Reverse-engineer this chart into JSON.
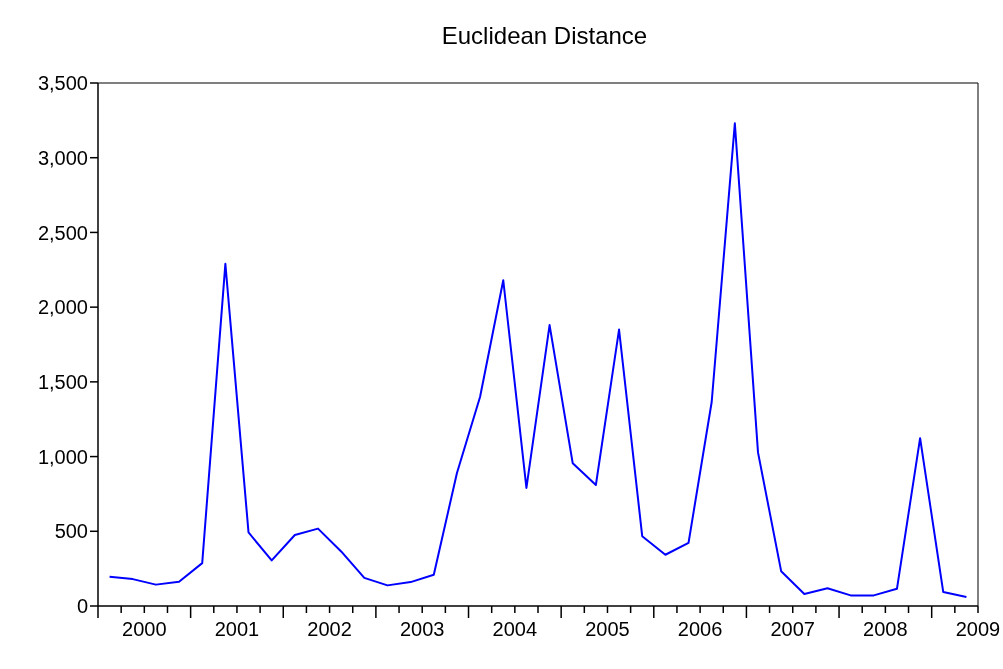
{
  "chart_data": {
    "type": "line",
    "title": "Euclidean Distance",
    "x": [
      2000.125,
      2000.375,
      2000.625,
      2000.875,
      2001.125,
      2001.375,
      2001.625,
      2001.875,
      2002.125,
      2002.375,
      2002.625,
      2002.875,
      2003.125,
      2003.375,
      2003.625,
      2003.875,
      2004.125,
      2004.375,
      2004.625,
      2004.875,
      2005.125,
      2005.375,
      2005.625,
      2005.875,
      2006.125,
      2006.375,
      2006.625,
      2006.875,
      2007.125,
      2007.375,
      2007.625,
      2007.875,
      2008.125,
      2008.375,
      2008.625,
      2008.875,
      2009.125,
      2009.375
    ],
    "series": [
      {
        "color": "#0000ff",
        "values": [
          196,
          180,
          143,
          162,
          287,
          2290,
          492,
          305,
          475,
          518,
          365,
          188,
          138,
          160,
          209,
          890,
          1400,
          2180,
          790,
          1880,
          955,
          810,
          1850,
          467,
          343,
          423,
          1365,
          3230,
          1028,
          233,
          80,
          119,
          71,
          71,
          115,
          1123,
          93,
          60
        ]
      }
    ],
    "xlim": [
      2000,
      2009.5
    ],
    "xticks": [
      {
        "value": 2000,
        "label": null
      },
      {
        "value": 2000.25,
        "label": null
      },
      {
        "value": 2000.5,
        "label": "2000"
      },
      {
        "value": 2000.75,
        "label": null
      },
      {
        "value": 2001,
        "label": null
      },
      {
        "value": 2001.25,
        "label": null
      },
      {
        "value": 2001.5,
        "label": "2001"
      },
      {
        "value": 2001.75,
        "label": null
      },
      {
        "value": 2002,
        "label": null
      },
      {
        "value": 2002.25,
        "label": null
      },
      {
        "value": 2002.5,
        "label": "2002"
      },
      {
        "value": 2002.75,
        "label": null
      },
      {
        "value": 2003,
        "label": null
      },
      {
        "value": 2003.25,
        "label": null
      },
      {
        "value": 2003.5,
        "label": "2003"
      },
      {
        "value": 2003.75,
        "label": null
      },
      {
        "value": 2004,
        "label": null
      },
      {
        "value": 2004.25,
        "label": null
      },
      {
        "value": 2004.5,
        "label": "2004"
      },
      {
        "value": 2004.75,
        "label": null
      },
      {
        "value": 2005,
        "label": null
      },
      {
        "value": 2005.25,
        "label": null
      },
      {
        "value": 2005.5,
        "label": "2005"
      },
      {
        "value": 2005.75,
        "label": null
      },
      {
        "value": 2006,
        "label": null
      },
      {
        "value": 2006.25,
        "label": null
      },
      {
        "value": 2006.5,
        "label": "2006"
      },
      {
        "value": 2006.75,
        "label": null
      },
      {
        "value": 2007,
        "label": null
      },
      {
        "value": 2007.25,
        "label": null
      },
      {
        "value": 2007.5,
        "label": "2007"
      },
      {
        "value": 2007.75,
        "label": null
      },
      {
        "value": 2008,
        "label": null
      },
      {
        "value": 2008.25,
        "label": null
      },
      {
        "value": 2008.5,
        "label": "2008"
      },
      {
        "value": 2008.75,
        "label": null
      },
      {
        "value": 2009,
        "label": null
      },
      {
        "value": 2009.25,
        "label": null
      },
      {
        "value": 2009.5,
        "label": "2009"
      }
    ],
    "ylim": [
      0,
      3500
    ],
    "yticks": [
      {
        "value": 0,
        "label": "0"
      },
      {
        "value": 500,
        "label": "500"
      },
      {
        "value": 1000,
        "label": "1,000"
      },
      {
        "value": 1500,
        "label": "1,500"
      },
      {
        "value": 2000,
        "label": "2,000"
      },
      {
        "value": 2500,
        "label": "2,500"
      },
      {
        "value": 3000,
        "label": "3,000"
      },
      {
        "value": 3500,
        "label": "3,500"
      }
    ],
    "grid": false,
    "legend": false,
    "marker": "none",
    "line_style": "solid"
  }
}
